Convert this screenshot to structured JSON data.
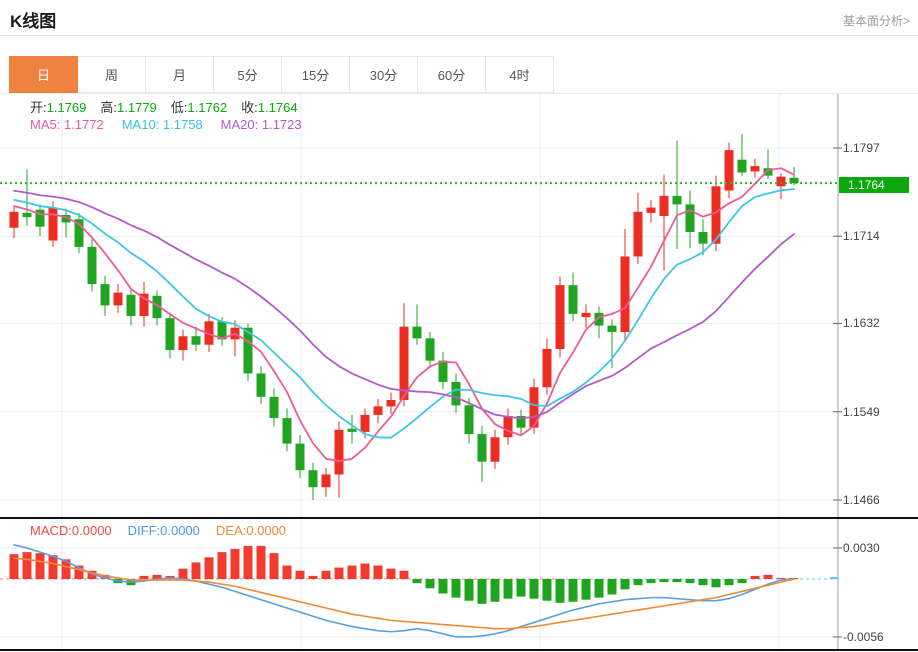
{
  "header": {
    "title": "K线图",
    "analysis_link": "基本面分析>"
  },
  "tabs": {
    "items": [
      "日",
      "周",
      "月",
      "5分",
      "15分",
      "30分",
      "60分",
      "4时"
    ],
    "active_index": 0
  },
  "legend": {
    "ohlc": [
      {
        "label": "开:",
        "value": "1.1769"
      },
      {
        "label": "高:",
        "value": "1.1779"
      },
      {
        "label": "低:",
        "value": "1.1762"
      },
      {
        "label": "收:",
        "value": "1.1764"
      }
    ],
    "ohlc_value_color": "#0ca80c",
    "ma": [
      {
        "label": "MA5:",
        "value": "1.1772",
        "color": "#ee5a99"
      },
      {
        "label": "MA10:",
        "value": "1.1758",
        "color": "#35c3e3"
      },
      {
        "label": "MA20:",
        "value": "1.1723",
        "color": "#b25bc8"
      }
    ]
  },
  "macd_legend": [
    {
      "label": "MACD:",
      "value": "0.0000",
      "color": "#f04a42"
    },
    {
      "label": "DIFF:",
      "value": "0.0000",
      "color": "#4a97e3"
    },
    {
      "label": "DEA:",
      "value": "0.0000",
      "color": "#f08a35"
    }
  ],
  "colors": {
    "up": "#ec2d22",
    "down": "#21a521",
    "ma5": "#ee5a99",
    "ma10": "#3fc6e4",
    "ma20": "#b25bc8",
    "diff_line": "#5b9fe0",
    "dea_line": "#f08a35",
    "hist_pos": "#f23b2f",
    "hist_neg": "#1ea51e",
    "dotted_price_line": "#2eb82e",
    "badge_bg": "#0ba80b",
    "grid": "#e4ecf4",
    "axis": "#9aa1a9",
    "dark_divider": "#111111",
    "zero_dash_left": "#f4b0aa",
    "zero_dash_right": "#a9d7f2",
    "zero_tick_cyan": "#66cbe6"
  },
  "chart_data": {
    "type": "candlestick+macd",
    "title": "K线图",
    "price_axis": {
      "ticks": [
        1.1797,
        1.1714,
        1.1632,
        1.1549,
        1.1466
      ],
      "current_price": 1.1764,
      "current_price_label": "1.1764",
      "range": [
        1.1466,
        1.1797
      ]
    },
    "ohlc_current": {
      "open": 1.1769,
      "high": 1.1779,
      "low": 1.1762,
      "close": 1.1764
    },
    "ma_current": {
      "ma5": 1.1772,
      "ma10": 1.1758,
      "ma20": 1.1723
    },
    "ma_windows": [
      5,
      10,
      20
    ],
    "ma_seed": [
      1.1772,
      1.177,
      1.1769,
      1.1768,
      1.1767,
      1.1766,
      1.1765,
      1.1764,
      1.1763,
      1.1762,
      1.176,
      1.1758,
      1.1756,
      1.1754,
      1.1752,
      1.175,
      1.1748,
      1.1745,
      1.1742,
      1.174
    ],
    "candles": [
      [
        1.1722,
        1.1742,
        1.1712,
        1.1737
      ],
      [
        1.1736,
        1.1777,
        1.1724,
        1.1732
      ],
      [
        1.1739,
        1.1744,
        1.1714,
        1.1723
      ],
      [
        1.171,
        1.1747,
        1.1704,
        1.1741
      ],
      [
        1.1734,
        1.174,
        1.1713,
        1.1727
      ],
      [
        1.173,
        1.1736,
        1.1698,
        1.1704
      ],
      [
        1.1704,
        1.1711,
        1.1662,
        1.1669
      ],
      [
        1.1669,
        1.1677,
        1.1639,
        1.1649
      ],
      [
        1.1649,
        1.1669,
        1.1642,
        1.1661
      ],
      [
        1.1659,
        1.1665,
        1.163,
        1.1639
      ],
      [
        1.1639,
        1.1671,
        1.1629,
        1.166
      ],
      [
        1.1658,
        1.1663,
        1.163,
        1.1637
      ],
      [
        1.1637,
        1.1642,
        1.1599,
        1.1607
      ],
      [
        1.1607,
        1.1626,
        1.1597,
        1.162
      ],
      [
        1.162,
        1.1629,
        1.1606,
        1.1612
      ],
      [
        1.1612,
        1.1641,
        1.1605,
        1.1634
      ],
      [
        1.1634,
        1.1638,
        1.1611,
        1.1617
      ],
      [
        1.1617,
        1.1635,
        1.1601,
        1.1628
      ],
      [
        1.1628,
        1.1632,
        1.1578,
        1.1585
      ],
      [
        1.1585,
        1.1592,
        1.1556,
        1.1563
      ],
      [
        1.1563,
        1.1571,
        1.1535,
        1.1543
      ],
      [
        1.1543,
        1.1552,
        1.1512,
        1.1519
      ],
      [
        1.1519,
        1.1527,
        1.1487,
        1.1494
      ],
      [
        1.1494,
        1.1501,
        1.1466,
        1.1478
      ],
      [
        1.1478,
        1.1496,
        1.1469,
        1.149
      ],
      [
        1.149,
        1.154,
        1.1468,
        1.1532
      ],
      [
        1.1533,
        1.1546,
        1.1519,
        1.153
      ],
      [
        1.153,
        1.1552,
        1.1524,
        1.1546
      ],
      [
        1.1546,
        1.1561,
        1.1538,
        1.1554
      ],
      [
        1.1554,
        1.1567,
        1.1547,
        1.156
      ],
      [
        1.156,
        1.1651,
        1.1554,
        1.1629
      ],
      [
        1.1629,
        1.165,
        1.1612,
        1.1618
      ],
      [
        1.1618,
        1.1624,
        1.159,
        1.1597
      ],
      [
        1.1597,
        1.1605,
        1.157,
        1.1577
      ],
      [
        1.1577,
        1.1585,
        1.1548,
        1.1555
      ],
      [
        1.1555,
        1.1562,
        1.1519,
        1.1528
      ],
      [
        1.1528,
        1.1536,
        1.1483,
        1.1502
      ],
      [
        1.1502,
        1.1532,
        1.1495,
        1.1525
      ],
      [
        1.1525,
        1.1552,
        1.1518,
        1.1545
      ],
      [
        1.1545,
        1.1551,
        1.1527,
        1.1534
      ],
      [
        1.1534,
        1.158,
        1.1528,
        1.1572
      ],
      [
        1.1572,
        1.1618,
        1.1565,
        1.1608
      ],
      [
        1.1608,
        1.1676,
        1.16,
        1.1668
      ],
      [
        1.1668,
        1.168,
        1.1634,
        1.1641
      ],
      [
        1.1638,
        1.165,
        1.1628,
        1.1642
      ],
      [
        1.1642,
        1.1648,
        1.1618,
        1.163
      ],
      [
        1.163,
        1.1636,
        1.159,
        1.1624
      ],
      [
        1.1624,
        1.1721,
        1.1616,
        1.1695
      ],
      [
        1.1695,
        1.1755,
        1.1688,
        1.1737
      ],
      [
        1.1736,
        1.1748,
        1.1727,
        1.1741
      ],
      [
        1.1733,
        1.1772,
        1.1682,
        1.1752
      ],
      [
        1.1752,
        1.1804,
        1.1702,
        1.1744
      ],
      [
        1.1744,
        1.1757,
        1.1703,
        1.1718
      ],
      [
        1.1718,
        1.173,
        1.1696,
        1.1707
      ],
      [
        1.1707,
        1.1771,
        1.17,
        1.1761
      ],
      [
        1.1757,
        1.1802,
        1.175,
        1.1795
      ],
      [
        1.1786,
        1.181,
        1.1771,
        1.1774
      ],
      [
        1.1775,
        1.1787,
        1.1769,
        1.178
      ],
      [
        1.1778,
        1.1796,
        1.1768,
        1.1771
      ],
      [
        1.1761,
        1.1773,
        1.1749,
        1.177
      ],
      [
        1.1769,
        1.1779,
        1.1762,
        1.1764
      ]
    ],
    "macd": {
      "axis_ticks": [
        0.003,
        -0.0056
      ],
      "zero": 0.0,
      "hist": [
        0.0024,
        0.0026,
        0.0025,
        0.0023,
        0.0019,
        0.0013,
        0.0008,
        0.0004,
        -0.0004,
        -0.0006,
        0.0003,
        0.0004,
        0.0003,
        0.001,
        0.0016,
        0.0021,
        0.0026,
        0.0029,
        0.0032,
        0.0032,
        0.0025,
        0.0013,
        0.0008,
        0.0003,
        0.0008,
        0.0011,
        0.0013,
        0.0015,
        0.0013,
        0.001,
        0.0008,
        -0.0004,
        -0.0009,
        -0.0014,
        -0.0018,
        -0.0021,
        -0.0024,
        -0.0022,
        -0.0019,
        -0.0017,
        -0.0019,
        -0.0021,
        -0.0023,
        -0.0022,
        -0.002,
        -0.0018,
        -0.0015,
        -0.001,
        -0.0006,
        -0.0004,
        -0.0003,
        -0.0003,
        -0.0004,
        -0.0006,
        -0.0008,
        -0.0006,
        -0.0004,
        0.0003,
        0.0004,
        0.0001,
        0.0
      ],
      "diff": [
        0.0033,
        0.003,
        0.0026,
        0.0022,
        0.0017,
        0.0011,
        0.0005,
        0.0001,
        -0.0002,
        -0.0003,
        -0.0002,
        0.0,
        0.0001,
        0.0,
        -0.0002,
        -0.0005,
        -0.0008,
        -0.0012,
        -0.0016,
        -0.002,
        -0.0024,
        -0.0028,
        -0.0032,
        -0.0036,
        -0.004,
        -0.0043,
        -0.0046,
        -0.0048,
        -0.005,
        -0.0051,
        -0.005,
        -0.0048,
        -0.005,
        -0.0053,
        -0.0056,
        -0.0056,
        -0.0055,
        -0.0053,
        -0.005,
        -0.0046,
        -0.0042,
        -0.0038,
        -0.0034,
        -0.003,
        -0.0027,
        -0.0024,
        -0.0022,
        -0.002,
        -0.0019,
        -0.0018,
        -0.0018,
        -0.0019,
        -0.002,
        -0.0021,
        -0.0021,
        -0.0019,
        -0.0015,
        -0.001,
        -0.0005,
        -0.0001,
        0.0
      ],
      "dea": [
        0.002,
        0.0019,
        0.0017,
        0.0015,
        0.0012,
        0.0009,
        0.0006,
        0.0003,
        0.0001,
        -0.0001,
        -0.0001,
        -0.0001,
        -0.0001,
        -0.0001,
        -0.0002,
        -0.0003,
        -0.0005,
        -0.0007,
        -0.001,
        -0.0013,
        -0.0016,
        -0.0019,
        -0.0022,
        -0.0025,
        -0.0028,
        -0.0031,
        -0.0034,
        -0.0036,
        -0.0038,
        -0.004,
        -0.0041,
        -0.0042,
        -0.0043,
        -0.0044,
        -0.0045,
        -0.0046,
        -0.0047,
        -0.0048,
        -0.0048,
        -0.0047,
        -0.0046,
        -0.0044,
        -0.0042,
        -0.004,
        -0.0038,
        -0.0036,
        -0.0034,
        -0.0032,
        -0.003,
        -0.0028,
        -0.0026,
        -0.0024,
        -0.0022,
        -0.002,
        -0.0018,
        -0.0015,
        -0.0012,
        -0.0009,
        -0.0006,
        -0.0003,
        0.0
      ]
    },
    "layout_hints": {
      "grid": true,
      "legend_position": "top-left",
      "volume": false
    }
  },
  "macd_ticks": [
    {
      "label": "0.0030",
      "value": 0.003
    },
    {
      "label": "-0.0056",
      "value": -0.0056
    }
  ]
}
